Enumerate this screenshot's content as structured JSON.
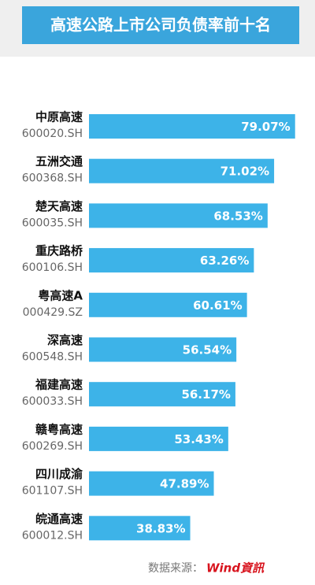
{
  "chart_data": {
    "type": "bar",
    "orientation": "horizontal",
    "title": "高速公路上市公司负债率前十名",
    "categories": [
      "中原高速",
      "五洲交通",
      "楚天高速",
      "重庆路桥",
      "粤高速A",
      "深高速",
      "福建高速",
      "赣粤高速",
      "四川成渝",
      "皖通高速"
    ],
    "tickers": [
      "600020.SH",
      "600368.SH",
      "600035.SH",
      "600106.SH",
      "000429.SZ",
      "600548.SH",
      "600033.SH",
      "600269.SH",
      "601107.SH",
      "600012.SH"
    ],
    "values": [
      79.07,
      71.02,
      68.53,
      63.26,
      60.61,
      56.54,
      56.17,
      53.43,
      47.89,
      38.83
    ],
    "value_labels": [
      "79.07%",
      "71.02%",
      "68.53%",
      "63.26%",
      "60.61%",
      "56.54%",
      "56.17%",
      "53.43%",
      "47.89%",
      "38.83%"
    ],
    "color": "#3db3e8",
    "source_label": "数据来源：",
    "source_brand": "Wind資訊"
  }
}
